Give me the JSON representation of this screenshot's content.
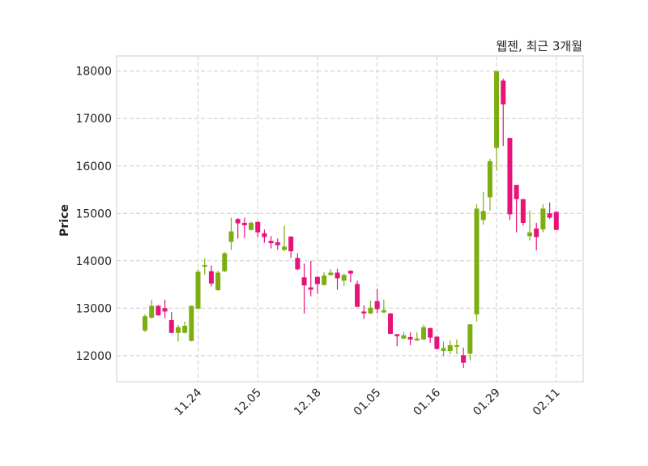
{
  "chart_data": {
    "type": "candlestick",
    "title": "웹젠, 최근 3개월",
    "xlabel": "",
    "ylabel": "Price",
    "ylim": [
      11450,
      18320
    ],
    "yticks": [
      12000,
      13000,
      14000,
      15000,
      16000,
      17000,
      18000
    ],
    "grid": true,
    "colors": {
      "up": "#7cae12",
      "down": "#e8137a",
      "grid": "#cccccc",
      "frame": "#dddddd"
    },
    "xticks": [
      {
        "index": 8,
        "label": "11.24"
      },
      {
        "index": 17,
        "label": "12.05"
      },
      {
        "index": 26,
        "label": "12.18"
      },
      {
        "index": 35,
        "label": "01.05"
      },
      {
        "index": 44,
        "label": "01.16"
      },
      {
        "index": 53,
        "label": "01.29"
      },
      {
        "index": 62,
        "label": "02.11"
      }
    ],
    "ohlc_fields": [
      "open",
      "high",
      "low",
      "close"
    ],
    "candles": [
      [
        12530,
        12870,
        12500,
        12830
      ],
      [
        12800,
        13180,
        12780,
        13050
      ],
      [
        13050,
        13070,
        12840,
        12850
      ],
      [
        13000,
        13180,
        12790,
        12930
      ],
      [
        12750,
        12920,
        12470,
        12480
      ],
      [
        12480,
        12650,
        12300,
        12600
      ],
      [
        12480,
        12720,
        12470,
        12630
      ],
      [
        12310,
        13050,
        12300,
        13050
      ],
      [
        12990,
        13820,
        12990,
        13770
      ],
      [
        13880,
        14050,
        13710,
        13910
      ],
      [
        13780,
        13900,
        13460,
        13520
      ],
      [
        13380,
        13790,
        13370,
        13750
      ],
      [
        13780,
        14180,
        13760,
        14160
      ],
      [
        14400,
        14910,
        14230,
        14620
      ],
      [
        14880,
        14900,
        14470,
        14790
      ],
      [
        14800,
        14910,
        14480,
        14750
      ],
      [
        14650,
        14830,
        14640,
        14800
      ],
      [
        14820,
        14830,
        14500,
        14600
      ],
      [
        14580,
        14660,
        14380,
        14500
      ],
      [
        14420,
        14520,
        14260,
        14370
      ],
      [
        14390,
        14470,
        14230,
        14330
      ],
      [
        14230,
        14740,
        14200,
        14300
      ],
      [
        14510,
        14520,
        14060,
        14200
      ],
      [
        14060,
        14160,
        13800,
        13820
      ],
      [
        13650,
        13940,
        12890,
        13480
      ],
      [
        13440,
        14000,
        13250,
        13390
      ],
      [
        13660,
        13670,
        13300,
        13510
      ],
      [
        13490,
        13760,
        13480,
        13690
      ],
      [
        13700,
        13820,
        13680,
        13750
      ],
      [
        13750,
        13830,
        13390,
        13630
      ],
      [
        13580,
        13730,
        13470,
        13700
      ],
      [
        13790,
        13800,
        13550,
        13730
      ],
      [
        13510,
        13580,
        13020,
        13030
      ],
      [
        12930,
        13060,
        12770,
        12890
      ],
      [
        12890,
        13160,
        12880,
        13010
      ],
      [
        13150,
        13410,
        12890,
        12980
      ],
      [
        12910,
        13180,
        12900,
        12960
      ],
      [
        12890,
        12900,
        12450,
        12460
      ],
      [
        12450,
        12460,
        12200,
        12410
      ],
      [
        12360,
        12500,
        12350,
        12430
      ],
      [
        12390,
        12490,
        12220,
        12340
      ],
      [
        12320,
        12490,
        12310,
        12360
      ],
      [
        12340,
        12650,
        12330,
        12600
      ],
      [
        12580,
        12590,
        12270,
        12380
      ],
      [
        12400,
        12410,
        12130,
        12140
      ],
      [
        12100,
        12300,
        11990,
        12160
      ],
      [
        12100,
        12320,
        12030,
        12220
      ],
      [
        12200,
        12340,
        12030,
        12220
      ],
      [
        12010,
        12170,
        11740,
        11850
      ],
      [
        12040,
        12660,
        11910,
        12660
      ],
      [
        12870,
        15190,
        12720,
        15100
      ],
      [
        14860,
        15450,
        14760,
        15050
      ],
      [
        15340,
        16150,
        15060,
        16100
      ],
      [
        16380,
        18000,
        15900,
        18000
      ],
      [
        17800,
        17840,
        16420,
        17300
      ],
      [
        16590,
        16590,
        14860,
        14980
      ],
      [
        15600,
        15600,
        14600,
        15300
      ],
      [
        15300,
        15300,
        14740,
        14800
      ],
      [
        14520,
        15060,
        14430,
        14600
      ],
      [
        14680,
        14800,
        14220,
        14500
      ],
      [
        14660,
        15190,
        14600,
        15100
      ],
      [
        15000,
        15230,
        14880,
        14910
      ],
      [
        15030,
        15050,
        14650,
        14650
      ]
    ]
  }
}
